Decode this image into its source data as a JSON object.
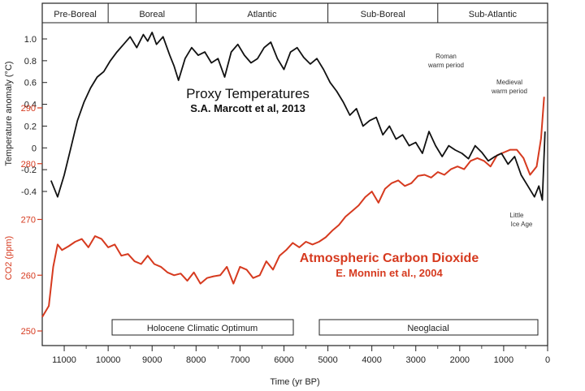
{
  "chart_data": {
    "type": "line",
    "periods": [
      "Pre-Boreal",
      "Boreal",
      "Atlantic",
      "Sub-Boreal",
      "Sub-Atlantic"
    ],
    "period_bounds": [
      11500,
      10000,
      8000,
      5000,
      2500,
      0
    ],
    "xlabel": "Time (yr BP)",
    "xlim": [
      11500,
      0
    ],
    "x_ticks": [
      11000,
      10000,
      9000,
      8000,
      7000,
      6000,
      5000,
      4000,
      3000,
      2000,
      1000,
      0
    ],
    "y_temp_label": "Temperature anomaly (°C)",
    "y_temp_ticks": [
      "1.0",
      "0.8",
      "0.6",
      "0.4",
      "0.2",
      "0",
      "-0.2",
      "-0.4"
    ],
    "y_temp_range": [
      -0.55,
      1.1
    ],
    "y_co2_label": "CO2 (ppm)",
    "y_co2_ticks": [
      "290",
      "280",
      "270",
      "260",
      "250"
    ],
    "y_co2_range": [
      249,
      293
    ],
    "series": [
      {
        "name": "Proxy Temperatures",
        "subtitle": "S.A. Marcott et al, 2013",
        "axis": "temp",
        "color": "#111111",
        "x": [
          11300,
          11150,
          11000,
          10850,
          10700,
          10550,
          10400,
          10250,
          10100,
          9950,
          9800,
          9650,
          9500,
          9350,
          9200,
          9100,
          9000,
          8900,
          8750,
          8600,
          8500,
          8400,
          8250,
          8100,
          7950,
          7800,
          7650,
          7500,
          7350,
          7200,
          7050,
          6900,
          6750,
          6600,
          6450,
          6300,
          6150,
          6000,
          5850,
          5700,
          5550,
          5400,
          5250,
          5100,
          4950,
          4800,
          4650,
          4500,
          4350,
          4200,
          4050,
          3900,
          3750,
          3600,
          3450,
          3300,
          3150,
          3000,
          2850,
          2700,
          2550,
          2400,
          2250,
          2100,
          1950,
          1800,
          1650,
          1500,
          1350,
          1200,
          1050,
          900,
          750,
          600,
          450,
          300,
          200,
          120,
          60
        ],
        "y": [
          -0.3,
          -0.45,
          -0.25,
          0.0,
          0.25,
          0.42,
          0.55,
          0.65,
          0.7,
          0.8,
          0.88,
          0.95,
          1.02,
          0.92,
          1.04,
          0.98,
          1.06,
          0.95,
          1.02,
          0.85,
          0.75,
          0.62,
          0.82,
          0.92,
          0.85,
          0.88,
          0.78,
          0.82,
          0.65,
          0.88,
          0.95,
          0.85,
          0.78,
          0.82,
          0.92,
          0.97,
          0.82,
          0.72,
          0.88,
          0.92,
          0.83,
          0.77,
          0.82,
          0.72,
          0.6,
          0.52,
          0.42,
          0.3,
          0.36,
          0.2,
          0.25,
          0.28,
          0.12,
          0.2,
          0.08,
          0.12,
          0.02,
          0.05,
          -0.05,
          0.15,
          0.02,
          -0.08,
          0.02,
          -0.02,
          -0.05,
          -0.1,
          0.02,
          -0.04,
          -0.12,
          -0.08,
          -0.05,
          -0.15,
          -0.08,
          -0.25,
          -0.35,
          -0.45,
          -0.35,
          -0.48,
          0.15
        ]
      },
      {
        "name": "Atmospheric Carbon Dioxide",
        "subtitle": "E. Monnin et al., 2004",
        "axis": "co2",
        "color": "#d63a1f",
        "x": [
          11500,
          11350,
          11250,
          11150,
          11050,
          10900,
          10750,
          10600,
          10450,
          10300,
          10150,
          10000,
          9850,
          9700,
          9550,
          9400,
          9250,
          9100,
          8950,
          8800,
          8650,
          8500,
          8350,
          8200,
          8050,
          7900,
          7750,
          7600,
          7450,
          7300,
          7150,
          7000,
          6850,
          6700,
          6550,
          6400,
          6250,
          6100,
          5950,
          5800,
          5650,
          5500,
          5350,
          5200,
          5050,
          4900,
          4750,
          4600,
          4450,
          4300,
          4150,
          4000,
          3850,
          3700,
          3550,
          3400,
          3250,
          3100,
          2950,
          2800,
          2650,
          2500,
          2350,
          2200,
          2050,
          1900,
          1750,
          1600,
          1450,
          1300,
          1150,
          1000,
          850,
          700,
          550,
          400,
          250,
          150,
          80
        ],
        "y": [
          252.5,
          254.5,
          261.5,
          265.5,
          264.5,
          265.2,
          266.0,
          266.5,
          265.0,
          267.0,
          266.5,
          265.0,
          265.5,
          263.5,
          263.8,
          262.5,
          262.0,
          263.5,
          262.0,
          261.5,
          260.5,
          260.0,
          260.3,
          259.0,
          260.5,
          258.5,
          259.5,
          259.8,
          260.0,
          261.5,
          258.5,
          261.5,
          261.0,
          259.5,
          260.0,
          262.5,
          261.0,
          263.5,
          264.5,
          265.8,
          265.0,
          266.0,
          265.5,
          266.0,
          266.8,
          268.0,
          269.0,
          270.5,
          271.5,
          272.5,
          274.0,
          275.0,
          273.0,
          275.5,
          276.5,
          277.0,
          276.0,
          276.5,
          277.8,
          278.0,
          277.5,
          278.5,
          278.0,
          279.0,
          279.5,
          279.0,
          280.5,
          281.0,
          280.5,
          279.5,
          281.5,
          282.0,
          282.5,
          282.5,
          281.0,
          278.0,
          279.5,
          284.5,
          292.0
        ]
      }
    ],
    "annotations": [
      {
        "text": "Roman warm period",
        "lines": [
          "Roman",
          "warm period"
        ]
      },
      {
        "text": "Medieval warm period",
        "lines": [
          "Medieval",
          "warm period"
        ]
      },
      {
        "text": "Little Ice Age",
        "lines": [
          "Little",
          "Ice Age"
        ]
      }
    ],
    "boxes": [
      "Holocene Climatic Optimum",
      "Neoglacial"
    ]
  }
}
